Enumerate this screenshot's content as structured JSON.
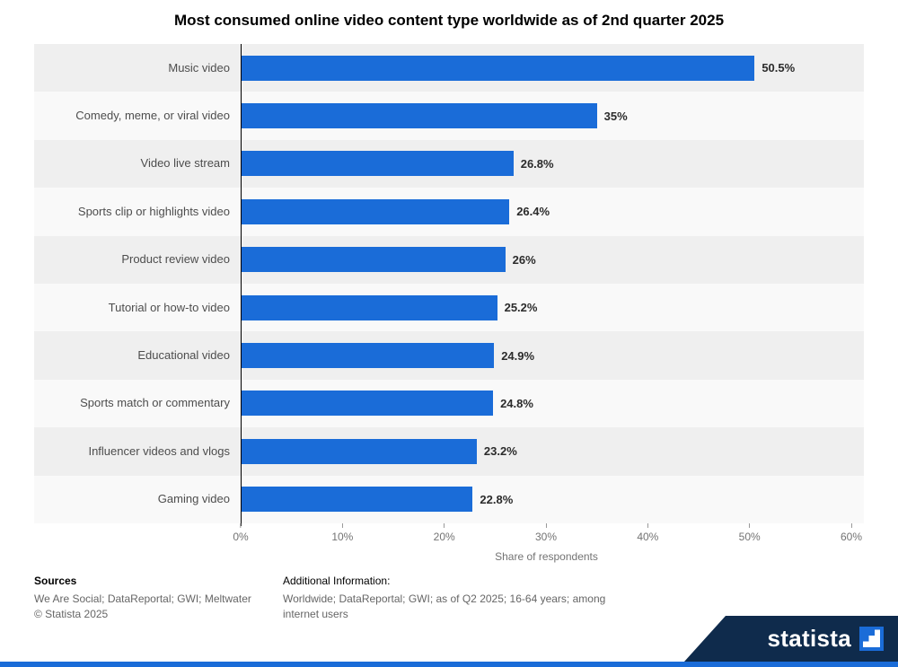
{
  "title": "Most consumed online video content type worldwide as of 2nd quarter 2025",
  "chart_data": {
    "type": "bar",
    "orientation": "horizontal",
    "categories": [
      "Music video",
      "Comedy, meme, or viral video",
      "Video live stream",
      "Sports clip or highlights video",
      "Product review video",
      "Tutorial or how-to video",
      "Educational video",
      "Sports match or commentary",
      "Influencer videos and vlogs",
      "Gaming video"
    ],
    "values": [
      50.5,
      35,
      26.8,
      26.4,
      26,
      25.2,
      24.9,
      24.8,
      23.2,
      22.8
    ],
    "value_labels": [
      "50.5%",
      "35%",
      "26.8%",
      "26.4%",
      "26%",
      "25.2%",
      "24.9%",
      "24.8%",
      "23.2%",
      "22.8%"
    ],
    "xlabel": "Share of respondents",
    "xlim": [
      0,
      60
    ],
    "x_ticks": [
      "0%",
      "10%",
      "20%",
      "30%",
      "40%",
      "50%",
      "60%"
    ],
    "grid": "row-stripes",
    "legend": "none",
    "bar_color": "#1a6cd8",
    "stripe_color_odd": "#efefef",
    "stripe_color_even": "#f9f9f9"
  },
  "footer": {
    "sources_heading": "Sources",
    "sources_text": "We Are Social; DataReportal; GWI; Meltwater",
    "copyright": "© Statista 2025",
    "additional_heading": "Additional Information:",
    "additional_text": "Worldwide; DataReportal; GWI; as of Q2 2025; 16-64 years; among internet users"
  },
  "branding": {
    "logo_text": "statista",
    "banner_color": "#0f2b4c",
    "accent_color": "#1a6cd8"
  }
}
